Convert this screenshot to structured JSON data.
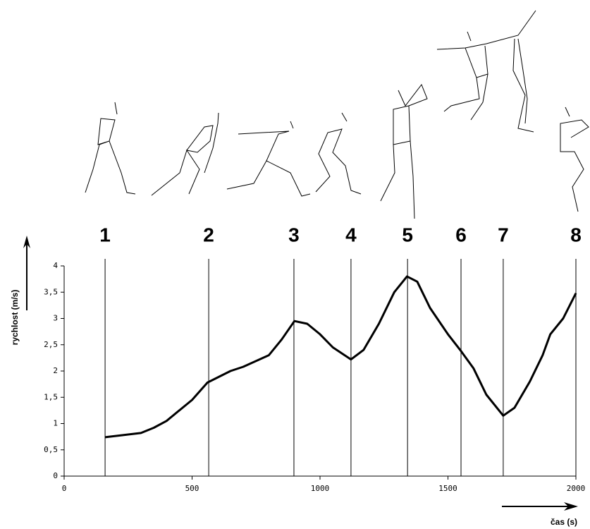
{
  "chart_data": {
    "type": "line",
    "x_label": "čas (s)",
    "y_label": "rychlost (m/s)",
    "xlim": [
      0,
      2000
    ],
    "ylim": [
      0,
      4
    ],
    "xticks": [
      0,
      500,
      1000,
      1500,
      2000
    ],
    "yticks": [
      0,
      {
        "value": 0.5,
        "label": "0,5"
      },
      1,
      {
        "value": 1.5,
        "label": "1,5"
      },
      2,
      {
        "value": 2.5,
        "label": "2,5"
      },
      3,
      {
        "value": 3.5,
        "label": "3,5"
      },
      4
    ],
    "markers": [
      {
        "label": "1",
        "x": 160
      },
      {
        "label": "2",
        "x": 565
      },
      {
        "label": "3",
        "x": 898
      },
      {
        "label": "4",
        "x": 1121
      },
      {
        "label": "5",
        "x": 1342
      },
      {
        "label": "6",
        "x": 1551
      },
      {
        "label": "7",
        "x": 1716
      },
      {
        "label": "8",
        "x": 2000
      }
    ],
    "series": [
      {
        "color": "#000000",
        "x": [
          160,
          230,
          300,
          350,
          400,
          500,
          560,
          650,
          700,
          800,
          850,
          900,
          950,
          1000,
          1050,
          1121,
          1170,
          1230,
          1290,
          1340,
          1380,
          1430,
          1500,
          1551,
          1600,
          1650,
          1716,
          1760,
          1820,
          1870,
          1900,
          1950,
          2000
        ],
        "values": [
          0.74,
          0.78,
          0.82,
          0.92,
          1.05,
          1.45,
          1.78,
          2.0,
          2.08,
          2.3,
          2.6,
          2.95,
          2.9,
          2.7,
          2.45,
          2.22,
          2.4,
          2.9,
          3.5,
          3.8,
          3.7,
          3.2,
          2.7,
          2.38,
          2.05,
          1.55,
          1.15,
          1.3,
          1.8,
          2.3,
          2.7,
          3.0,
          3.48
        ]
      }
    ]
  }
}
